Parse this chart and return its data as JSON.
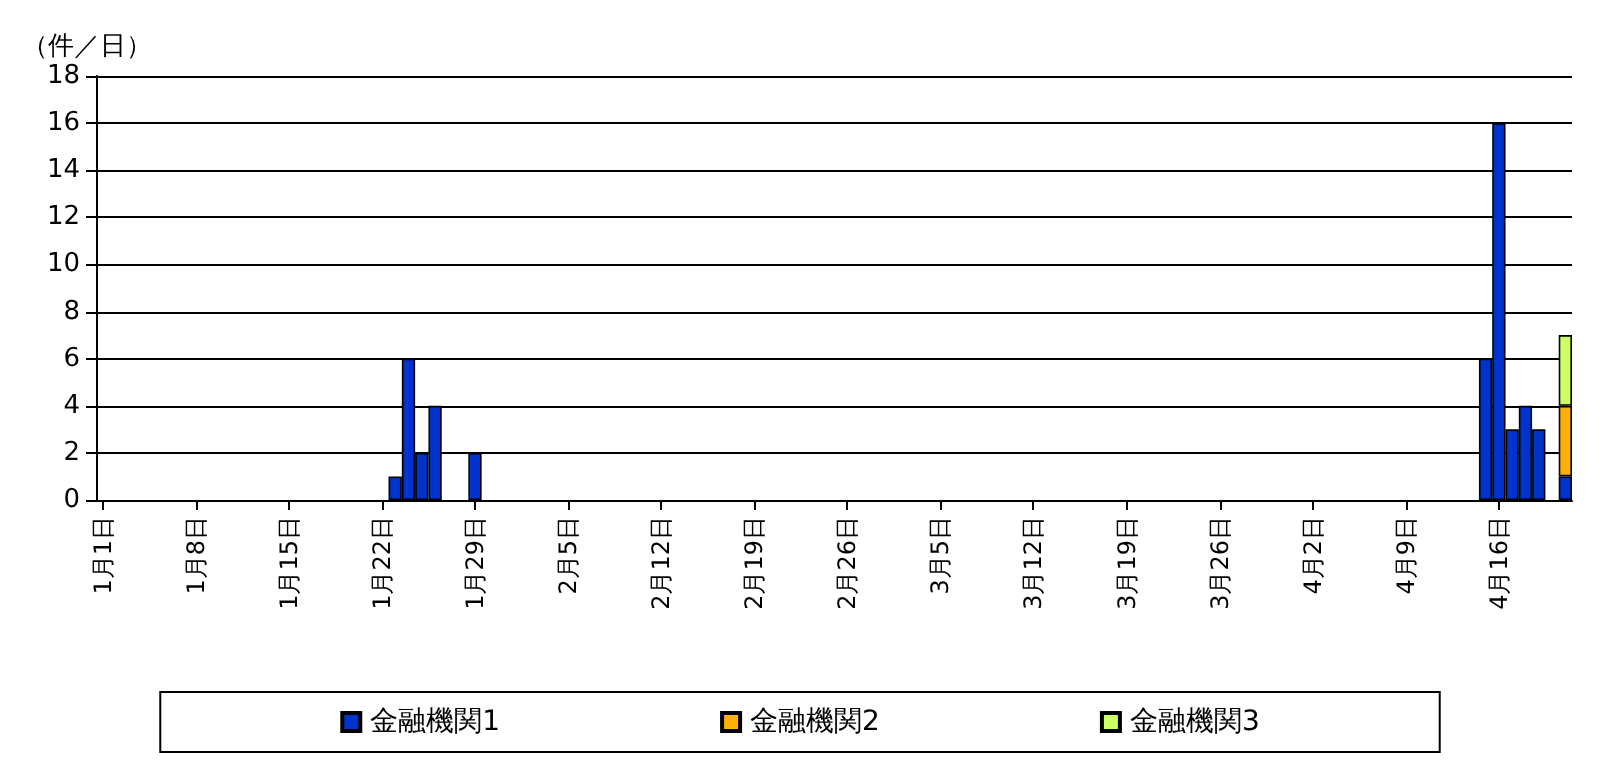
{
  "chart_data": {
    "type": "bar",
    "stacked": true,
    "ylabel": "（件／日）",
    "ylim": [
      0,
      18
    ],
    "yticks": [
      0,
      2,
      4,
      6,
      8,
      10,
      12,
      14,
      16,
      18
    ],
    "grid": "y",
    "legend": "bottom",
    "categories": [
      "1月1日",
      null,
      null,
      null,
      null,
      null,
      null,
      "1月8日",
      null,
      null,
      null,
      null,
      null,
      null,
      "1月15日",
      null,
      null,
      null,
      null,
      null,
      null,
      "1月22日",
      null,
      null,
      null,
      null,
      null,
      null,
      "1月29日",
      null,
      null,
      null,
      null,
      null,
      null,
      "2月5日",
      null,
      null,
      null,
      null,
      null,
      null,
      "2月12日",
      null,
      null,
      null,
      null,
      null,
      null,
      "2月19日",
      null,
      null,
      null,
      null,
      null,
      null,
      "2月26日",
      null,
      null,
      null,
      null,
      null,
      null,
      "3月5日",
      null,
      null,
      null,
      null,
      null,
      null,
      "3月12日",
      null,
      null,
      null,
      null,
      null,
      null,
      "3月19日",
      null,
      null,
      null,
      null,
      null,
      null,
      "3月26日",
      null,
      null,
      null,
      null,
      null,
      null,
      "4月2日",
      null,
      null,
      null,
      null,
      null,
      null,
      "4月9日",
      null,
      null,
      null,
      null,
      null,
      null,
      "4月16日",
      null,
      null,
      null,
      null,
      null
    ],
    "series": [
      {
        "name": "金融機関1",
        "color": "#0033cc",
        "values": [
          0,
          0,
          0,
          0,
          0,
          0,
          0,
          0,
          0,
          0,
          0,
          0,
          0,
          0,
          0,
          0,
          0,
          0,
          0,
          0,
          0,
          0,
          1,
          6,
          2,
          4,
          0,
          0,
          2,
          0,
          0,
          0,
          0,
          0,
          0,
          0,
          0,
          0,
          0,
          0,
          0,
          0,
          0,
          0,
          0,
          0,
          0,
          0,
          0,
          0,
          0,
          0,
          0,
          0,
          0,
          0,
          0,
          0,
          0,
          0,
          0,
          0,
          0,
          0,
          0,
          0,
          0,
          0,
          0,
          0,
          0,
          0,
          0,
          0,
          0,
          0,
          0,
          0,
          0,
          0,
          0,
          0,
          0,
          0,
          0,
          0,
          0,
          0,
          0,
          0,
          0,
          0,
          0,
          0,
          0,
          0,
          0,
          0,
          0,
          0,
          0,
          0,
          0,
          0,
          6,
          16,
          3,
          4,
          3,
          0,
          1
        ]
      },
      {
        "name": "金融機関2",
        "color": "#ffb000",
        "values": [
          0,
          0,
          0,
          0,
          0,
          0,
          0,
          0,
          0,
          0,
          0,
          0,
          0,
          0,
          0,
          0,
          0,
          0,
          0,
          0,
          0,
          0,
          0,
          0,
          0,
          0,
          0,
          0,
          0,
          0,
          0,
          0,
          0,
          0,
          0,
          0,
          0,
          0,
          0,
          0,
          0,
          0,
          0,
          0,
          0,
          0,
          0,
          0,
          0,
          0,
          0,
          0,
          0,
          0,
          0,
          0,
          0,
          0,
          0,
          0,
          0,
          0,
          0,
          0,
          0,
          0,
          0,
          0,
          0,
          0,
          0,
          0,
          0,
          0,
          0,
          0,
          0,
          0,
          0,
          0,
          0,
          0,
          0,
          0,
          0,
          0,
          0,
          0,
          0,
          0,
          0,
          0,
          0,
          0,
          0,
          0,
          0,
          0,
          0,
          0,
          0,
          0,
          0,
          0,
          0,
          0,
          0,
          0,
          0,
          0,
          3
        ]
      },
      {
        "name": "金融機関3",
        "color": "#ccff66",
        "values": [
          0,
          0,
          0,
          0,
          0,
          0,
          0,
          0,
          0,
          0,
          0,
          0,
          0,
          0,
          0,
          0,
          0,
          0,
          0,
          0,
          0,
          0,
          0,
          0,
          0,
          0,
          0,
          0,
          0,
          0,
          0,
          0,
          0,
          0,
          0,
          0,
          0,
          0,
          0,
          0,
          0,
          0,
          0,
          0,
          0,
          0,
          0,
          0,
          0,
          0,
          0,
          0,
          0,
          0,
          0,
          0,
          0,
          0,
          0,
          0,
          0,
          0,
          0,
          0,
          0,
          0,
          0,
          0,
          0,
          0,
          0,
          0,
          0,
          0,
          0,
          0,
          0,
          0,
          0,
          0,
          0,
          0,
          0,
          0,
          0,
          0,
          0,
          0,
          0,
          0,
          0,
          0,
          0,
          0,
          0,
          0,
          0,
          0,
          0,
          0,
          0,
          0,
          0,
          0,
          0,
          0,
          0,
          0,
          0,
          0,
          3
        ]
      }
    ]
  }
}
